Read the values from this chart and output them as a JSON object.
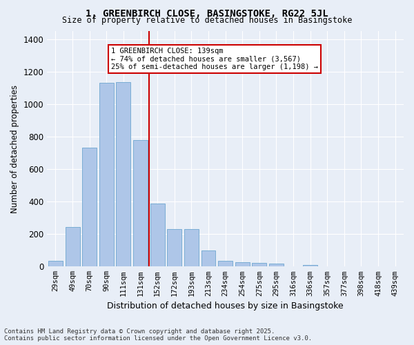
{
  "title1": "1, GREENBIRCH CLOSE, BASINGSTOKE, RG22 5JL",
  "title2": "Size of property relative to detached houses in Basingstoke",
  "xlabel": "Distribution of detached houses by size in Basingstoke",
  "ylabel": "Number of detached properties",
  "categories": [
    "29sqm",
    "49sqm",
    "70sqm",
    "90sqm",
    "111sqm",
    "131sqm",
    "152sqm",
    "172sqm",
    "193sqm",
    "213sqm",
    "234sqm",
    "254sqm",
    "275sqm",
    "295sqm",
    "316sqm",
    "336sqm",
    "357sqm",
    "377sqm",
    "398sqm",
    "418sqm",
    "439sqm"
  ],
  "values": [
    35,
    245,
    730,
    1130,
    1135,
    780,
    390,
    230,
    230,
    100,
    35,
    25,
    22,
    18,
    0,
    10,
    0,
    0,
    0,
    0,
    0
  ],
  "bar_color": "#aec6e8",
  "bar_edge_color": "#7aadd4",
  "red_line_x": 5.5,
  "annotation_text": "1 GREENBIRCH CLOSE: 139sqm\n← 74% of detached houses are smaller (3,567)\n25% of semi-detached houses are larger (1,198) →",
  "annotation_box_color": "#ffffff",
  "annotation_box_edge": "#cc0000",
  "vline_color": "#cc0000",
  "background_color": "#e8eef7",
  "grid_color": "#ffffff",
  "ylim": [
    0,
    1450
  ],
  "yticks": [
    0,
    200,
    400,
    600,
    800,
    1000,
    1200,
    1400
  ],
  "footer1": "Contains HM Land Registry data © Crown copyright and database right 2025.",
  "footer2": "Contains public sector information licensed under the Open Government Licence v3.0."
}
